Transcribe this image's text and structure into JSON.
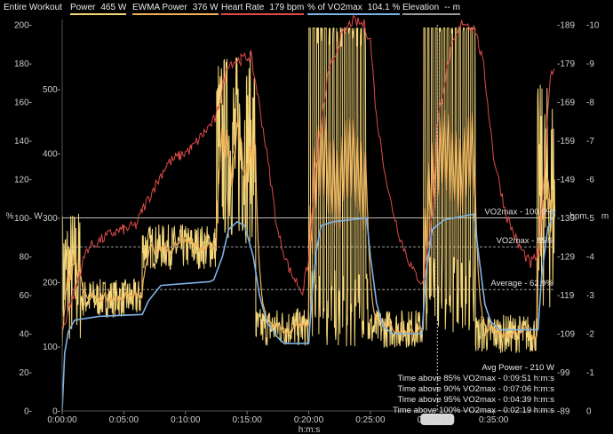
{
  "header": {
    "workout_label": "Entire Workout",
    "legend": [
      {
        "key": "power",
        "label": "Power",
        "value": "465 W",
        "color": "#f5d77a"
      },
      {
        "key": "ewma",
        "label": "EWMA Power",
        "value": "376 W",
        "color": "#f0b25a"
      },
      {
        "key": "hr",
        "label": "Heart Rate",
        "value": "179 bpm",
        "color": "#e04a4a"
      },
      {
        "key": "vo2",
        "label": "% of VO2max",
        "value": "104.1 %",
        "color": "#7fb2e5"
      },
      {
        "key": "elev",
        "label": "Elevation",
        "value": "-- m",
        "color": "#9a9a9a"
      }
    ]
  },
  "chart_data": {
    "type": "line",
    "xlabel": "h:m:s",
    "x_ticks": [
      "0:00:00",
      "0:05:00",
      "0:10:00",
      "0:15:00",
      "0:20:00",
      "0:25:00",
      "0:30:00",
      "0:35:00"
    ],
    "x_range_min": [
      0,
      40
    ],
    "cursor_time": "0:30:26",
    "left_axis_pct": {
      "label": "%",
      "ticks": [
        "0",
        "20",
        "40",
        "60",
        "80",
        "100",
        "120",
        "140",
        "160",
        "180",
        "200"
      ],
      "range": [
        0,
        200
      ]
    },
    "left_axis_w": {
      "label": "W",
      "ticks": [
        "0",
        "100",
        "200",
        "300",
        "400",
        "500"
      ],
      "range": [
        0,
        600
      ]
    },
    "right_axis_bpm": {
      "label": "bpm",
      "ticks": [
        "189",
        "179",
        "169",
        "159",
        "149",
        "139",
        "129",
        "119",
        "109",
        "99",
        "89"
      ],
      "range": [
        89,
        189
      ]
    },
    "right_axis_m": {
      "label": "m",
      "ticks": [
        "-10",
        "-9",
        "-8",
        "-7",
        "-6",
        "-5",
        "-4",
        "-3",
        "-2",
        "-1",
        "0"
      ],
      "range": [
        -10,
        0
      ]
    },
    "reference_lines": [
      {
        "label": "VO2max - 100.0%",
        "pct": 100,
        "style": "solid"
      },
      {
        "label": "VO2max - 85%",
        "pct": 85,
        "style": "dashed"
      },
      {
        "label": "Average - 62.9%",
        "pct": 62.9,
        "style": "dashed"
      }
    ],
    "power_segments_w": [
      {
        "t0": 0,
        "t1": 1.5,
        "base": 210,
        "amp": 110
      },
      {
        "t0": 1.5,
        "t1": 6.5,
        "base": 175,
        "amp": 30
      },
      {
        "t0": 6.5,
        "t1": 12.5,
        "base": 255,
        "amp": 35
      },
      {
        "t0": 12.5,
        "t1": 15.7,
        "base": 410,
        "amp": 150
      },
      {
        "t0": 15.7,
        "t1": 20,
        "base": 130,
        "amp": 30
      },
      {
        "t0": 20,
        "t1": 24.8,
        "base": 400,
        "amp": 300
      },
      {
        "t0": 24.8,
        "t1": 29.3,
        "base": 128,
        "amp": 30
      },
      {
        "t0": 29.3,
        "t1": 33.5,
        "base": 420,
        "amp": 300
      },
      {
        "t0": 33.5,
        "t1": 38.5,
        "base": 120,
        "amp": 30
      },
      {
        "t0": 38.5,
        "t1": 40,
        "base": 330,
        "amp": 180
      }
    ],
    "heart_rate_bpm": [
      [
        0,
        110
      ],
      [
        1,
        120
      ],
      [
        2,
        131
      ],
      [
        3,
        133
      ],
      [
        4,
        135
      ],
      [
        5,
        136
      ],
      [
        6,
        137
      ],
      [
        6.5,
        141
      ],
      [
        7.5,
        147
      ],
      [
        8.5,
        153
      ],
      [
        9.5,
        155
      ],
      [
        10.5,
        157
      ],
      [
        11.5,
        161
      ],
      [
        12.5,
        165
      ],
      [
        13,
        173
      ],
      [
        13.5,
        179
      ],
      [
        14.5,
        180
      ],
      [
        15.3,
        181
      ],
      [
        15.8,
        172
      ],
      [
        16.5,
        158
      ],
      [
        17.5,
        135
      ],
      [
        18.5,
        125
      ],
      [
        19.5,
        120
      ],
      [
        20,
        128
      ],
      [
        20.5,
        150
      ],
      [
        21.5,
        175
      ],
      [
        22.5,
        185
      ],
      [
        23.5,
        190
      ],
      [
        24.5,
        189
      ],
      [
        25,
        185
      ],
      [
        25.5,
        165
      ],
      [
        26.5,
        145
      ],
      [
        27.5,
        133
      ],
      [
        28.5,
        125
      ],
      [
        29.3,
        122
      ],
      [
        30,
        140
      ],
      [
        30.5,
        165
      ],
      [
        31.5,
        182
      ],
      [
        32.5,
        190
      ],
      [
        33.5,
        188
      ],
      [
        34.2,
        178
      ],
      [
        35,
        155
      ],
      [
        36,
        140
      ],
      [
        37,
        132
      ],
      [
        38,
        127
      ],
      [
        38.7,
        130
      ],
      [
        39.2,
        155
      ],
      [
        39.6,
        177
      ],
      [
        40,
        177
      ]
    ],
    "vo2_pct": [
      [
        0,
        0
      ],
      [
        0.2,
        30
      ],
      [
        0.5,
        41
      ],
      [
        1,
        47
      ],
      [
        2,
        48
      ],
      [
        3,
        49
      ],
      [
        6.5,
        50
      ],
      [
        7,
        57
      ],
      [
        8,
        65
      ],
      [
        10,
        66
      ],
      [
        12,
        67
      ],
      [
        12.3,
        68
      ],
      [
        13,
        80
      ],
      [
        13.5,
        94
      ],
      [
        14.2,
        98
      ],
      [
        14.8,
        96
      ],
      [
        15.5,
        80
      ],
      [
        16,
        60
      ],
      [
        16.6,
        46
      ],
      [
        17.5,
        38
      ],
      [
        18,
        35
      ],
      [
        20,
        35
      ],
      [
        20.2,
        55
      ],
      [
        20.6,
        82
      ],
      [
        21,
        96
      ],
      [
        22,
        98
      ],
      [
        24.7,
        100
      ],
      [
        25,
        80
      ],
      [
        25.5,
        56
      ],
      [
        26,
        44
      ],
      [
        26.8,
        40
      ],
      [
        29.2,
        40
      ],
      [
        29.5,
        70
      ],
      [
        30,
        94
      ],
      [
        31,
        99
      ],
      [
        33.4,
        102
      ],
      [
        33.8,
        80
      ],
      [
        34.3,
        55
      ],
      [
        34.8,
        46
      ],
      [
        35.5,
        42
      ],
      [
        38.6,
        42
      ],
      [
        38.9,
        70
      ],
      [
        39.4,
        95
      ],
      [
        40,
        104
      ]
    ],
    "summary": [
      "Avg Power - 210 W",
      "Time above 85% VO2max - 0:09:51 h:m:s",
      "Time above 90% VO2max - 0:07:06 h:m:s",
      "Time above 95% VO2max - 0:04:39 h:m:s",
      "Time above 100% VO2max - 0:02:19 h:m:s"
    ]
  }
}
